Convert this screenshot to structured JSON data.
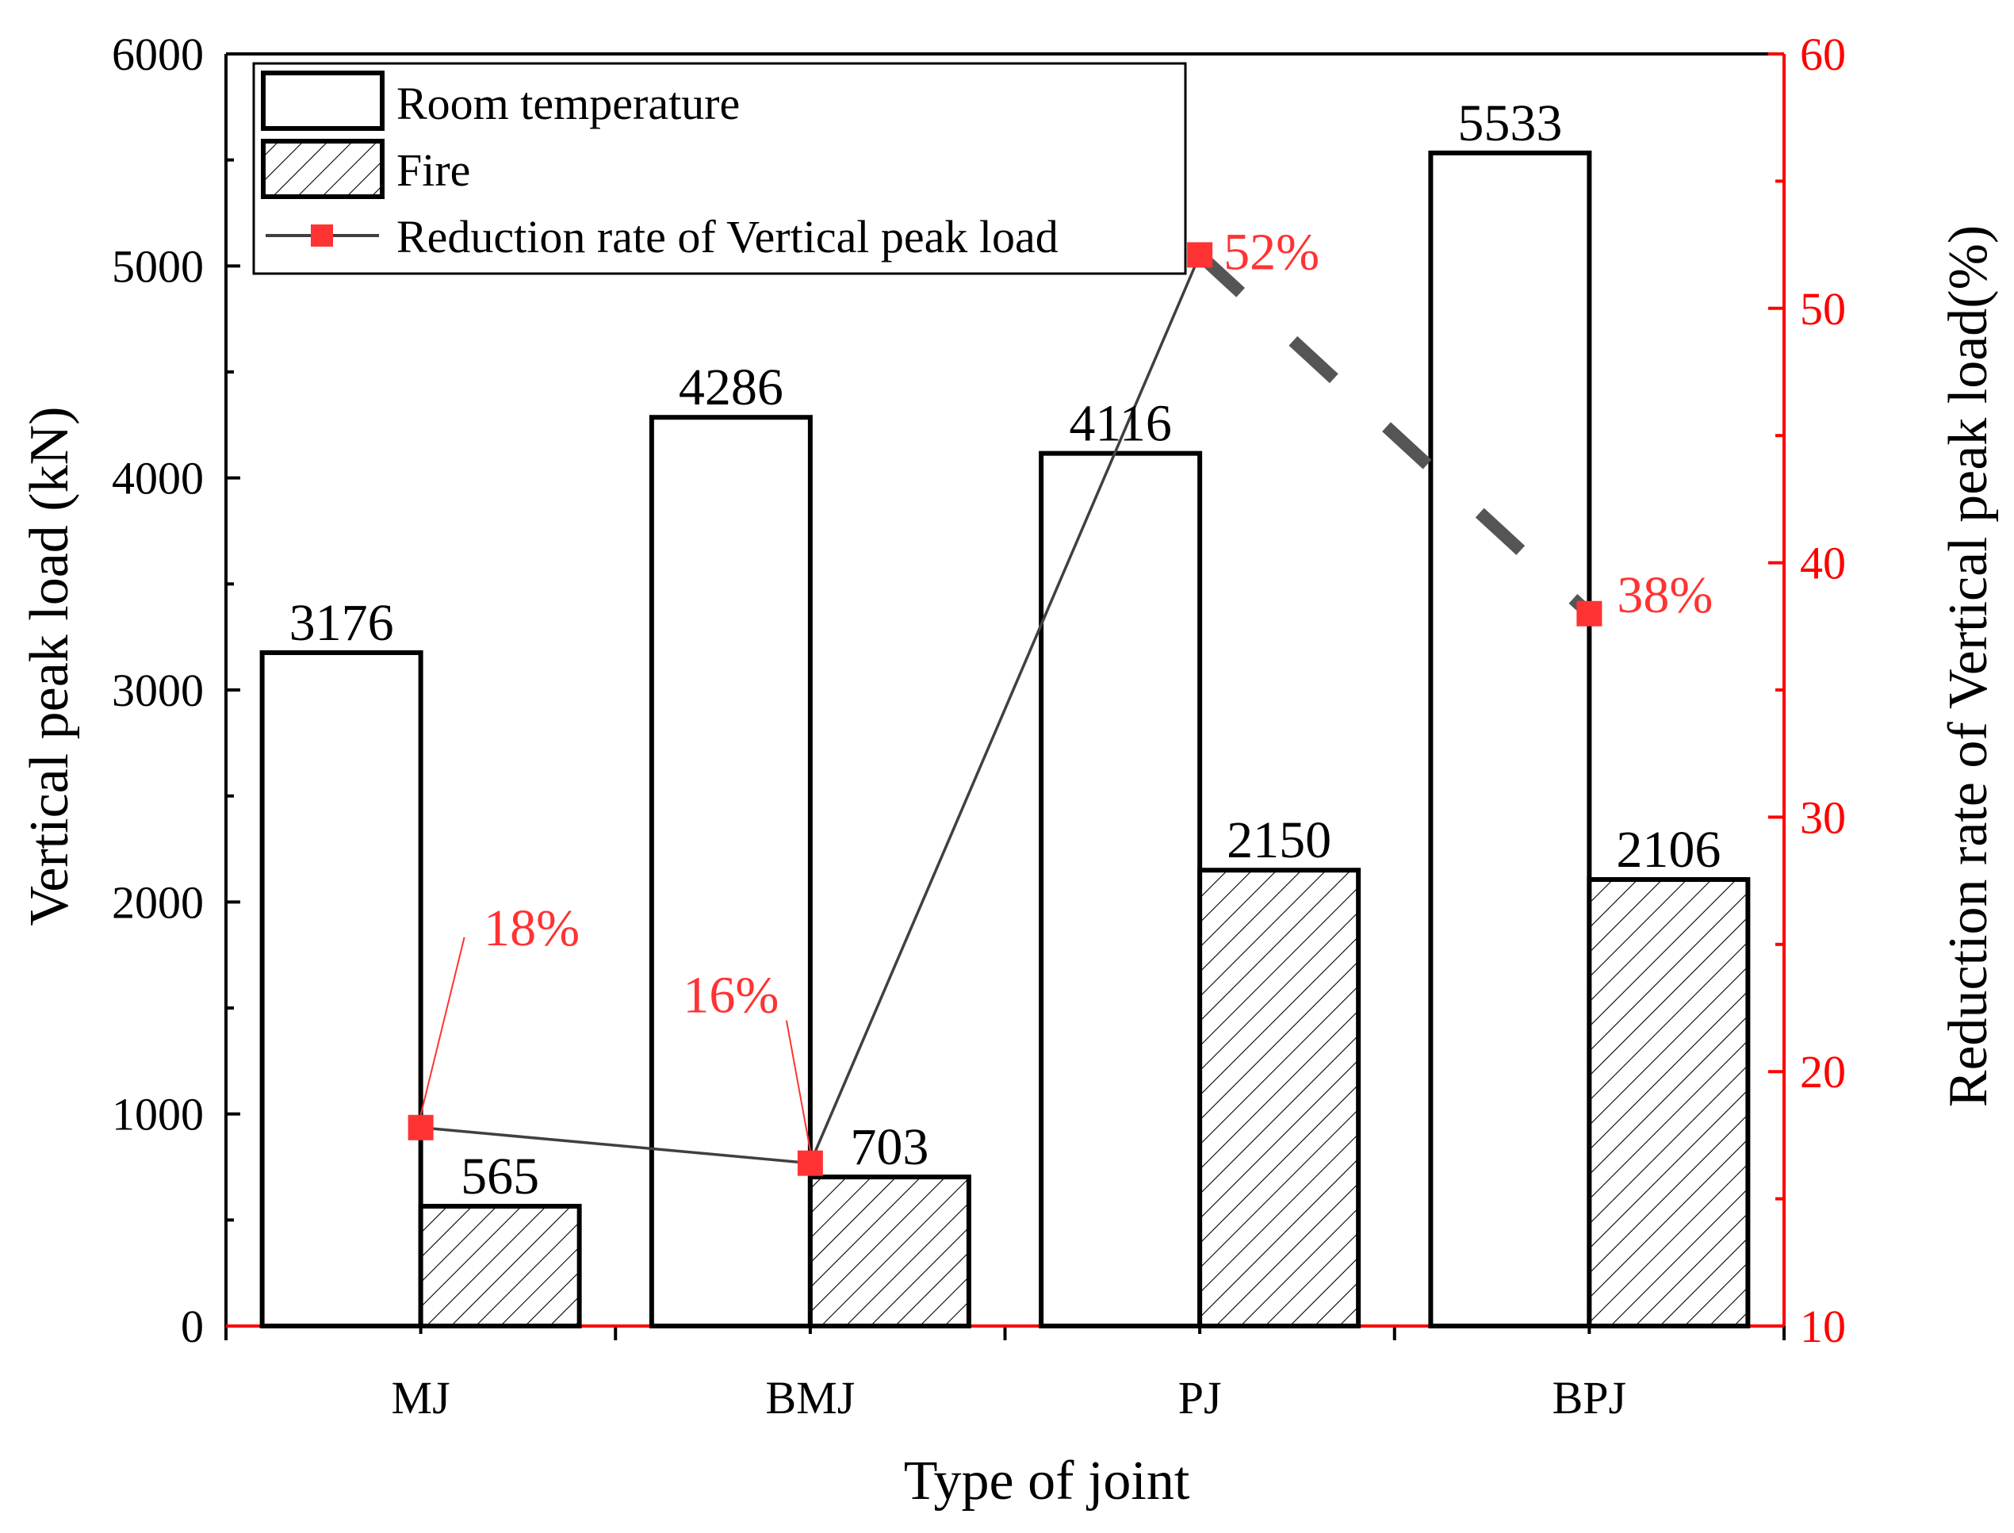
{
  "chart_data": {
    "type": "bar",
    "xlabel": "Type of joint",
    "ylabel": "Vertical peak load (kN)",
    "y2label": "Reduction rate of Vertical peak load(%)",
    "categories": [
      "MJ",
      "BMJ",
      "PJ",
      "BPJ"
    ],
    "ylim": [
      0,
      6000
    ],
    "yticks": [
      0,
      1000,
      2000,
      3000,
      4000,
      5000,
      6000
    ],
    "y2lim": [
      10,
      60
    ],
    "y2ticks": [
      10,
      20,
      30,
      40,
      50,
      60
    ],
    "series": [
      {
        "name": "Room temperature",
        "values": [
          3176,
          4286,
          4116,
          5533
        ],
        "labels": [
          "3176",
          "4286",
          "4116",
          "5533"
        ]
      },
      {
        "name": "Fire",
        "values": [
          565,
          703,
          2150,
          2106
        ],
        "labels": [
          "565",
          "703",
          "2150",
          "2106"
        ]
      }
    ],
    "line_series": {
      "name": "Reduction rate of Vertical peak load",
      "axis": "right",
      "values": [
        17.8,
        16.4,
        52.1,
        38.0
      ],
      "labels": [
        "18%",
        "16%",
        "52%",
        "38%"
      ],
      "color": "#ff3333"
    },
    "legend_position": "top-left",
    "colors": {
      "axis_right": "#ff0000",
      "label_red": "#ff3333",
      "line": "#404040"
    }
  }
}
